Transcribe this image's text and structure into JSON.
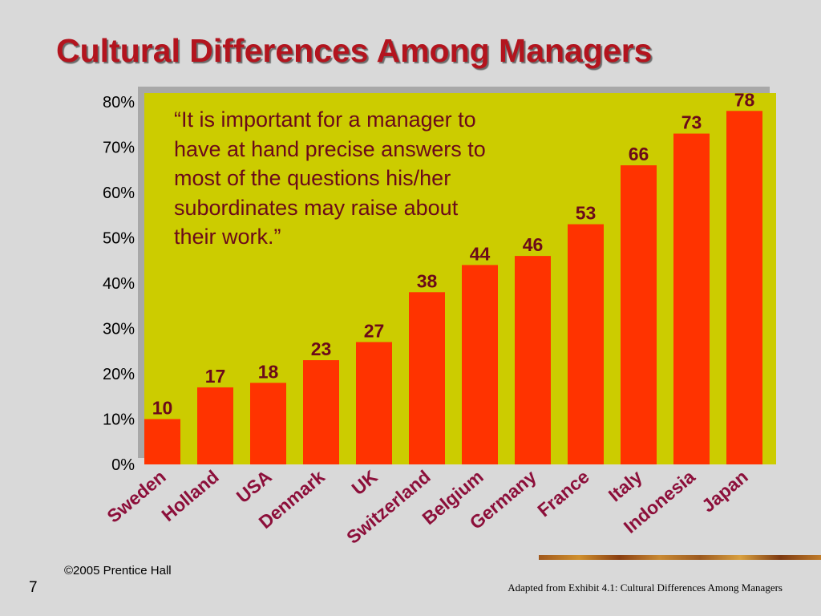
{
  "slide": {
    "title": "Cultural Differences Among Managers",
    "quote": "“It is important for a manager to have at hand precise answers to most of the questions his/her subordinates may raise about their work.”",
    "copyright": "©2005 Prentice Hall",
    "page_number": "7",
    "source": "Adapted from Exhibit 4.1: Cultural Differences Among Managers"
  },
  "chart_data": {
    "type": "bar",
    "title": "",
    "xlabel": "",
    "ylabel": "",
    "categories": [
      "Sweden",
      "Holland",
      "USA",
      "Denmark",
      "UK",
      "Switzerland",
      "Belgium",
      "Germany",
      "France",
      "Italy",
      "Indonesia",
      "Japan"
    ],
    "values": [
      10,
      17,
      18,
      23,
      27,
      38,
      44,
      46,
      53,
      66,
      73,
      78
    ],
    "ylim": [
      0,
      80
    ],
    "yticks": [
      "0%",
      "10%",
      "20%",
      "30%",
      "40%",
      "50%",
      "60%",
      "70%",
      "80%"
    ],
    "grid": false,
    "legend": "none",
    "colors": {
      "bar": "#ff3300",
      "plot_background": "#cccc00",
      "plot_shadow": "#a8a8a8",
      "data_label": "#6b0a1a",
      "category_label": "#8c0f3a"
    }
  }
}
